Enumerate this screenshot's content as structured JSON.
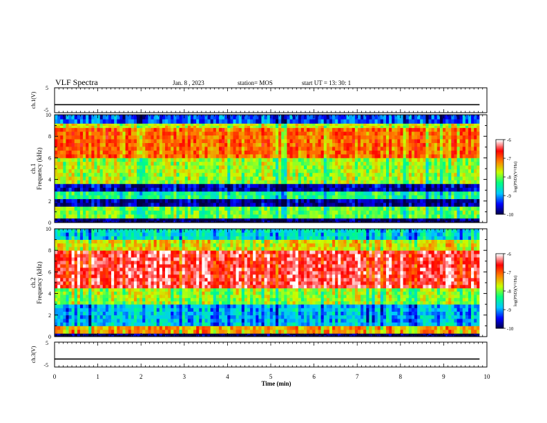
{
  "header": {
    "title": "VLF Spectra",
    "date": "Jan. 8 , 2023",
    "station": "station= MOS",
    "start": "start  UT =   13: 30: 1"
  },
  "chart_data": [
    {
      "type": "line",
      "panel": "ch1-voltage",
      "ylabel": "ch.1(V)",
      "ylim": [
        -5,
        5
      ],
      "yticks": [
        "5",
        "-5"
      ],
      "x": [
        0,
        9.83
      ],
      "values": [
        -1.8,
        -1.8
      ]
    },
    {
      "type": "heatmap",
      "panel": "ch1-spectrogram",
      "ylabel": "ch.1\nFrequency (kHz)",
      "ylabel_lines": [
        "ch.1",
        "Frequency (kHz)"
      ],
      "ylim": [
        0,
        10
      ],
      "yticks": [
        "0",
        "2",
        "4",
        "6",
        "8",
        "10"
      ],
      "colorbar": {
        "label": "log(PSD)(V²/Hz)",
        "ticks": [
          "-6",
          "-7",
          "-8",
          "-9",
          "-10"
        ],
        "range": [
          -10,
          -6
        ]
      },
      "bands": [
        {
          "f": [
            0,
            0.4
          ],
          "level": -9.9
        },
        {
          "f": [
            0.4,
            1.5
          ],
          "level": -8.0
        },
        {
          "f": [
            1.5,
            2.2
          ],
          "level": -9.7
        },
        {
          "f": [
            2.2,
            2.9
          ],
          "level": -8.3
        },
        {
          "f": [
            2.9,
            3.6
          ],
          "level": -9.6
        },
        {
          "f": [
            3.6,
            6.0
          ],
          "level": -7.8
        },
        {
          "f": [
            6.0,
            8.8
          ],
          "level": -7.0
        },
        {
          "f": [
            8.8,
            9.2
          ],
          "level": -7.6
        },
        {
          "f": [
            9.2,
            10
          ],
          "level": -9.2
        }
      ]
    },
    {
      "type": "heatmap",
      "panel": "ch2-spectrogram",
      "ylabel": "ch.2\nFrequency (kHz)",
      "ylabel_lines": [
        "ch.2",
        "Frequency (kHz)"
      ],
      "ylim": [
        0,
        10
      ],
      "yticks": [
        "0",
        "2",
        "4",
        "6",
        "8",
        "10"
      ],
      "colorbar": {
        "label": "log(PSD)(V²/Hz)",
        "ticks": [
          "-6",
          "-7",
          "-8",
          "-9",
          "-10"
        ],
        "range": [
          -10,
          -6
        ]
      },
      "bands": [
        {
          "f": [
            0,
            0.3
          ],
          "level": -9.9
        },
        {
          "f": [
            0.3,
            1.0
          ],
          "level": -7.2
        },
        {
          "f": [
            1.0,
            3.0
          ],
          "level": -8.8
        },
        {
          "f": [
            3.0,
            4.5
          ],
          "level": -7.8
        },
        {
          "f": [
            4.5,
            8.0
          ],
          "level": -6.4
        },
        {
          "f": [
            8.0,
            9.0
          ],
          "level": -7.5
        },
        {
          "f": [
            9.0,
            10
          ],
          "level": -8.6
        }
      ]
    },
    {
      "type": "line",
      "panel": "ch3-voltage",
      "ylabel": "ch.3(V)",
      "ylim": [
        -5,
        5
      ],
      "yticks": [
        "5",
        "-5"
      ],
      "x": [
        0,
        9.83
      ],
      "values": [
        -1.8,
        -1.8
      ]
    }
  ],
  "xaxis": {
    "label": "Time (min)",
    "range": [
      0,
      10
    ],
    "ticks": [
      "0",
      "1",
      "2",
      "3",
      "4",
      "5",
      "6",
      "7",
      "8",
      "9",
      "10"
    ]
  },
  "colors": {
    "ink": "#000000",
    "cmap": [
      "#000040",
      "#0000ff",
      "#00c8ff",
      "#00ff80",
      "#c8ff00",
      "#ff8000",
      "#ff0000",
      "#ffffff"
    ]
  }
}
